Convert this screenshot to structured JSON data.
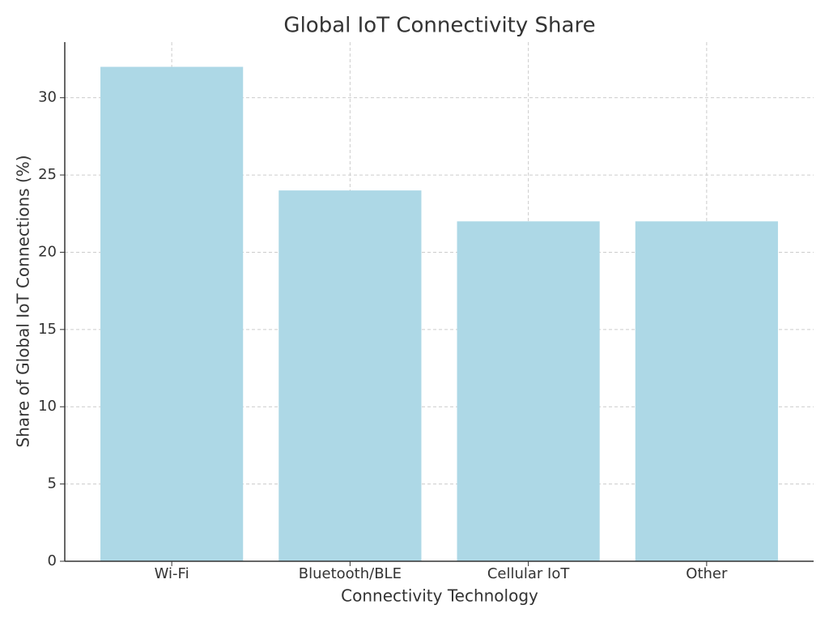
{
  "chart_data": {
    "type": "bar",
    "title": "Global IoT Connectivity Share",
    "x_label": "Connectivity Technology",
    "y_label": "Share of Global IoT Connections (%)",
    "categories": [
      "Wi-Fi",
      "Bluetooth/BLE",
      "Cellular IoT",
      "Other"
    ],
    "values": [
      32,
      24,
      22,
      22
    ],
    "color": "#add8e6",
    "ylim": [
      0,
      33.6
    ],
    "yticks": [
      0,
      5,
      10,
      15,
      20,
      25,
      30
    ],
    "grid": true
  }
}
